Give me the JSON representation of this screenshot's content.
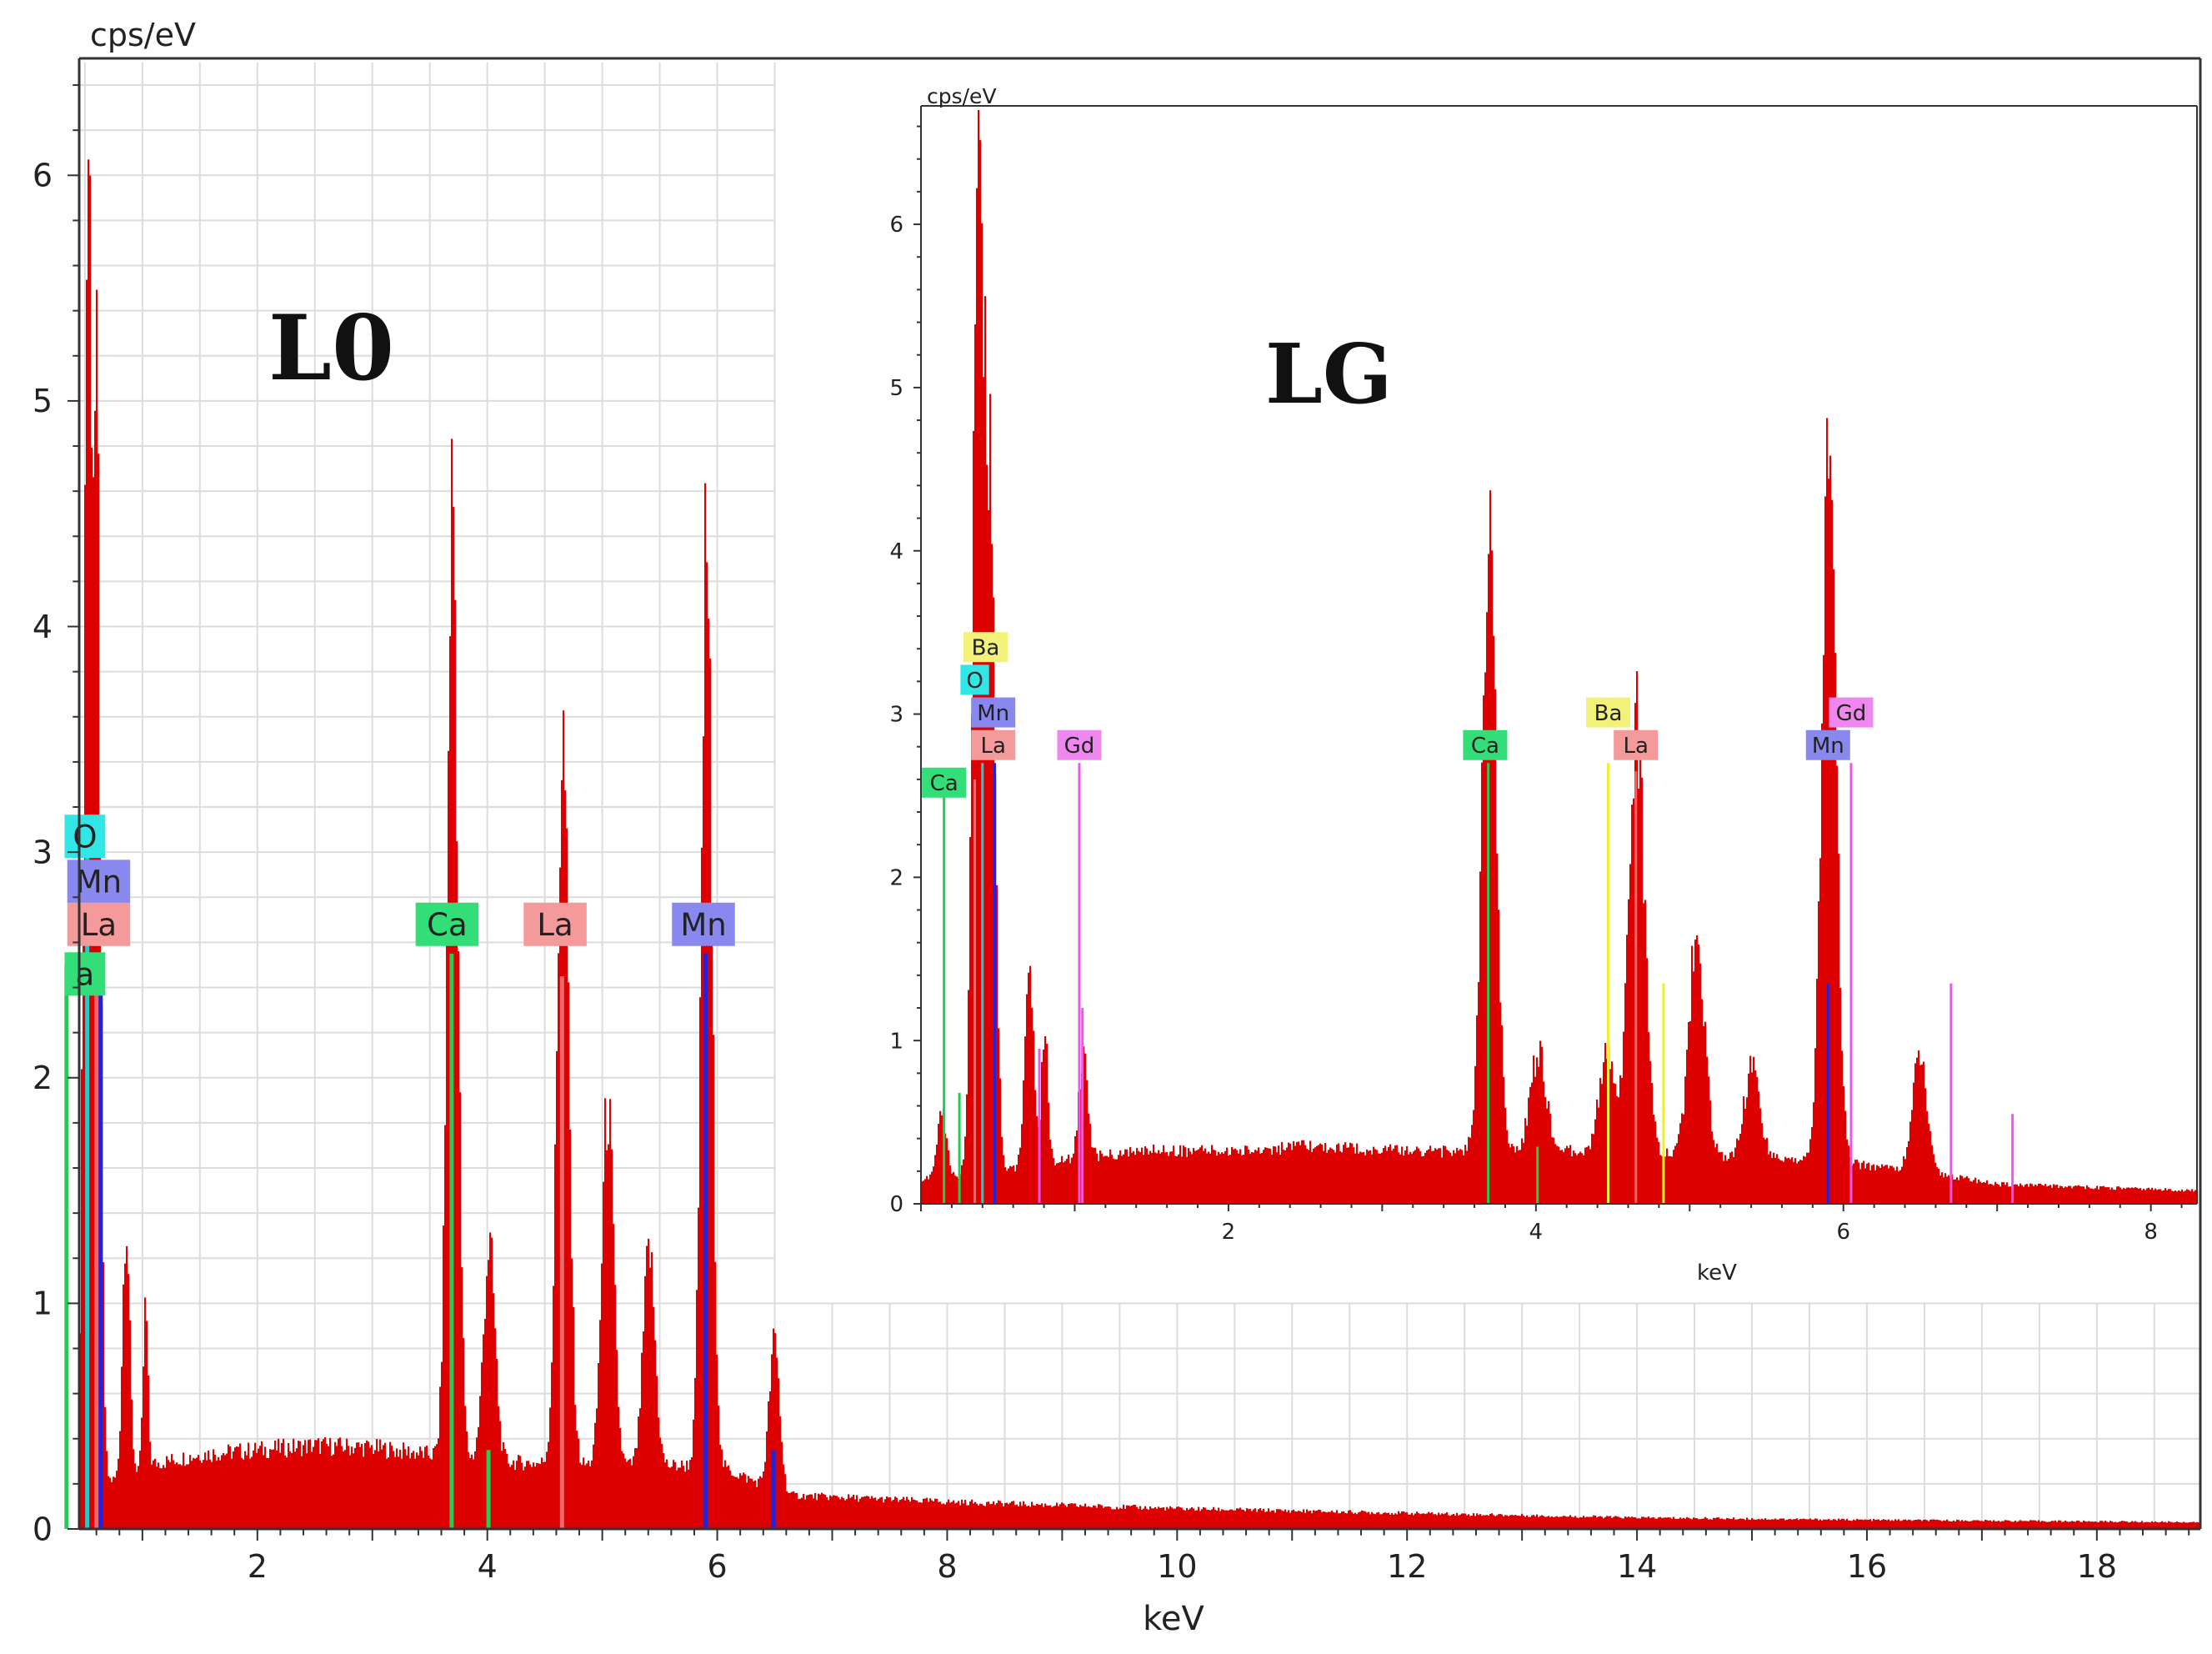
{
  "chart_data": [
    {
      "type": "bar",
      "title": "L0",
      "xlabel": "keV",
      "ylabel": "cps/eV",
      "xlim": [
        0.45,
        18.9
      ],
      "ylim": [
        0,
        6.5
      ],
      "x_ticks": [
        2,
        4,
        6,
        8,
        10,
        12,
        14,
        16,
        18
      ],
      "y_ticks": [
        0,
        1,
        2,
        3,
        4,
        5,
        6
      ],
      "grid": true,
      "colors": {
        "spectrum": "#dd0000",
        "O": "#33e6e6",
        "Mn": "#8888ee",
        "La": "#f49a9a",
        "Ca": "#33dd77",
        "Ba": "#f2f27a",
        "Gd": "#ee88ee"
      },
      "spectrum": {
        "background": [
          [
            0.45,
            0.2
          ],
          [
            0.8,
            0.22
          ],
          [
            1.0,
            0.28
          ],
          [
            1.5,
            0.33
          ],
          [
            2.0,
            0.35
          ],
          [
            2.5,
            0.37
          ],
          [
            3.0,
            0.36
          ],
          [
            3.5,
            0.33
          ],
          [
            4.0,
            0.3
          ],
          [
            5.0,
            0.28
          ],
          [
            6.0,
            0.28
          ],
          [
            6.6,
            0.15
          ],
          [
            8.0,
            0.12
          ],
          [
            10.0,
            0.09
          ],
          [
            12.0,
            0.07
          ],
          [
            14.0,
            0.05
          ],
          [
            16.0,
            0.04
          ],
          [
            18.9,
            0.03
          ]
        ],
        "peaks": [
          {
            "x": 0.52,
            "height": 5.8,
            "width": 0.035
          },
          {
            "x": 0.6,
            "height": 4.2,
            "width": 0.03
          },
          {
            "x": 0.85,
            "height": 1.15,
            "width": 0.03
          },
          {
            "x": 1.02,
            "height": 0.7,
            "width": 0.02
          },
          {
            "x": 3.69,
            "height": 4.3,
            "width": 0.045
          },
          {
            "x": 4.01,
            "height": 0.95,
            "width": 0.05
          },
          {
            "x": 4.65,
            "height": 3.2,
            "width": 0.05
          },
          {
            "x": 5.04,
            "height": 1.6,
            "width": 0.05
          },
          {
            "x": 5.4,
            "height": 0.95,
            "width": 0.05
          },
          {
            "x": 5.9,
            "height": 4.1,
            "width": 0.045
          },
          {
            "x": 6.49,
            "height": 0.65,
            "width": 0.045
          }
        ]
      },
      "element_lines": [
        {
          "element": "O",
          "x": 0.52,
          "height": 3.0
        },
        {
          "element": "Mn",
          "x": 0.637,
          "height": 2.38
        },
        {
          "element": "La",
          "x": 0.6,
          "height": 2.55
        },
        {
          "element": "Ca",
          "x": 0.34,
          "height": 2.5
        },
        {
          "element": "Ca",
          "x": 3.69,
          "height": 2.55
        },
        {
          "element": "Ca",
          "x": 4.01,
          "height": 0.35
        },
        {
          "element": "La",
          "x": 4.65,
          "height": 2.45
        },
        {
          "element": "Mn",
          "x": 5.9,
          "height": 2.55
        },
        {
          "element": "Mn",
          "x": 6.49,
          "height": 0.35
        }
      ],
      "element_labels": [
        {
          "text": "O",
          "element": "O",
          "x": 0.5,
          "y": 3.07
        },
        {
          "text": "Mn",
          "element": "Mn",
          "x": 0.62,
          "y": 2.87
        },
        {
          "text": "La",
          "element": "La",
          "x": 0.62,
          "y": 2.68
        },
        {
          "text": "a",
          "element": "Ca",
          "x": 0.5,
          "y": 2.46
        },
        {
          "text": "Ca",
          "element": "Ca",
          "x": 3.65,
          "y": 2.68
        },
        {
          "text": "La",
          "element": "La",
          "x": 4.59,
          "y": 2.68
        },
        {
          "text": "Mn",
          "element": "Mn",
          "x": 5.88,
          "y": 2.68
        }
      ]
    },
    {
      "type": "bar",
      "title": "LG",
      "xlabel": "keV",
      "ylabel": "cps/eV",
      "xlim": [
        0.0,
        8.3
      ],
      "ylim": [
        0,
        6.7
      ],
      "x_ticks": [
        2,
        4,
        6,
        8
      ],
      "y_ticks": [
        0,
        1,
        2,
        3,
        4,
        5,
        6
      ],
      "grid": false,
      "spectrum": {
        "background": [
          [
            0.0,
            0.15
          ],
          [
            0.4,
            0.18
          ],
          [
            0.8,
            0.25
          ],
          [
            1.5,
            0.33
          ],
          [
            2.0,
            0.32
          ],
          [
            2.5,
            0.35
          ],
          [
            3.0,
            0.33
          ],
          [
            3.5,
            0.32
          ],
          [
            4.0,
            0.33
          ],
          [
            5.0,
            0.3
          ],
          [
            5.5,
            0.28
          ],
          [
            6.0,
            0.25
          ],
          [
            6.5,
            0.2
          ],
          [
            7.0,
            0.12
          ],
          [
            8.3,
            0.08
          ]
        ],
        "peaks": [
          {
            "x": 0.13,
            "height": 0.4,
            "width": 0.03
          },
          {
            "x": 0.37,
            "height": 6.55,
            "width": 0.035
          },
          {
            "x": 0.45,
            "height": 3.8,
            "width": 0.03
          },
          {
            "x": 0.7,
            "height": 1.1,
            "width": 0.03
          },
          {
            "x": 0.8,
            "height": 0.8,
            "width": 0.02
          },
          {
            "x": 1.05,
            "height": 0.6,
            "width": 0.03
          },
          {
            "x": 3.69,
            "height": 3.7,
            "width": 0.045
          },
          {
            "x": 4.01,
            "height": 0.6,
            "width": 0.05
          },
          {
            "x": 4.46,
            "height": 0.65,
            "width": 0.05
          },
          {
            "x": 4.65,
            "height": 2.65,
            "width": 0.05
          },
          {
            "x": 5.04,
            "height": 1.35,
            "width": 0.05
          },
          {
            "x": 5.4,
            "height": 0.55,
            "width": 0.05
          },
          {
            "x": 5.9,
            "height": 4.5,
            "width": 0.045
          },
          {
            "x": 6.49,
            "height": 0.7,
            "width": 0.045
          }
        ]
      },
      "element_lines": [
        {
          "element": "Ca",
          "x": 0.15,
          "height": 2.5
        },
        {
          "element": "Ca",
          "x": 0.25,
          "height": 0.68
        },
        {
          "element": "La",
          "x": 0.35,
          "height": 2.6
        },
        {
          "element": "O",
          "x": 0.4,
          "height": 2.7
        },
        {
          "element": "Mn",
          "x": 0.48,
          "height": 2.7
        },
        {
          "element": "Gd",
          "x": 0.77,
          "height": 0.95
        },
        {
          "element": "Gd",
          "x": 1.03,
          "height": 2.7
        },
        {
          "element": "Gd",
          "x": 1.05,
          "height": 1.2
        },
        {
          "element": "Ca",
          "x": 3.69,
          "height": 2.7
        },
        {
          "element": "Ca",
          "x": 4.01,
          "height": 0.35
        },
        {
          "element": "Ba",
          "x": 4.47,
          "height": 2.7
        },
        {
          "element": "La",
          "x": 4.65,
          "height": 2.65
        },
        {
          "element": "Ba",
          "x": 4.83,
          "height": 1.35
        },
        {
          "element": "Mn",
          "x": 5.9,
          "height": 1.35
        },
        {
          "element": "Gd",
          "x": 6.05,
          "height": 2.7
        },
        {
          "element": "Gd",
          "x": 6.7,
          "height": 1.35
        },
        {
          "element": "Gd",
          "x": 7.1,
          "height": 0.55
        }
      ],
      "element_labels": [
        {
          "text": "Ba",
          "element": "Ba",
          "x": 0.42,
          "y": 3.41
        },
        {
          "text": "O",
          "element": "O",
          "x": 0.35,
          "y": 3.21
        },
        {
          "text": "Mn",
          "element": "Mn",
          "x": 0.47,
          "y": 3.01
        },
        {
          "text": "La",
          "element": "La",
          "x": 0.47,
          "y": 2.81
        },
        {
          "text": "Gd",
          "element": "Gd",
          "x": 1.03,
          "y": 2.81
        },
        {
          "text": "Ca",
          "element": "Ca",
          "x": 0.15,
          "y": 2.58
        },
        {
          "text": "Ca",
          "element": "Ca",
          "x": 3.67,
          "y": 2.81
        },
        {
          "text": "Ba",
          "element": "Ba",
          "x": 4.47,
          "y": 3.01
        },
        {
          "text": "La",
          "element": "La",
          "x": 4.65,
          "y": 2.81
        },
        {
          "text": "Gd",
          "element": "Gd",
          "x": 6.05,
          "y": 3.01
        },
        {
          "text": "Mn",
          "element": "Mn",
          "x": 5.9,
          "y": 2.81
        }
      ]
    }
  ]
}
